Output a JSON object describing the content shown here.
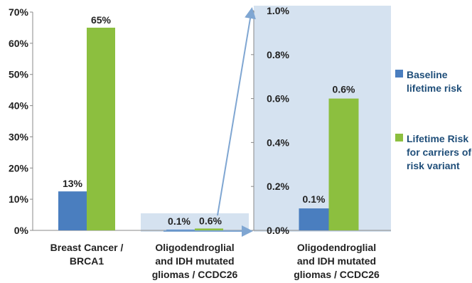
{
  "colors": {
    "baseline": "#4a7ebf",
    "carrier": "#8cbf3f",
    "zoom_bg": "#d5e2f0",
    "arrow": "#7fa6d2",
    "axis": "#888888"
  },
  "chart_data": [
    {
      "type": "bar",
      "ylim": [
        0,
        70
      ],
      "y_ticks": [
        "0%",
        "10%",
        "20%",
        "30%",
        "40%",
        "50%",
        "60%",
        "70%"
      ],
      "categories": [
        [
          "Breast Cancer /",
          "BRCA1"
        ],
        [
          "Oligodendroglial",
          "and IDH mutated",
          "gliomas / CCDC26"
        ]
      ],
      "series": [
        {
          "name": "Baseline lifetime risk",
          "values": [
            12.5,
            0.1
          ],
          "labels": [
            "13%",
            "0.1%"
          ]
        },
        {
          "name": "Lifetime Risk for carriers of risk variant",
          "values": [
            65,
            0.6
          ],
          "labels": [
            "65%",
            "0.6%"
          ]
        }
      ]
    },
    {
      "type": "bar",
      "ylim": [
        0,
        1.0
      ],
      "y_ticks": [
        "0.0%",
        "0.2%",
        "0.4%",
        "0.6%",
        "0.8%",
        "1.0%"
      ],
      "categories": [
        [
          "Oligodendroglial",
          "and IDH mutated",
          "gliomas / CCDC26"
        ]
      ],
      "series": [
        {
          "name": "Baseline lifetime risk",
          "values": [
            0.1
          ],
          "labels": [
            "0.1%"
          ]
        },
        {
          "name": "Lifetime Risk for carriers of risk variant",
          "values": [
            0.6
          ],
          "labels": [
            "0.6%"
          ]
        }
      ]
    }
  ],
  "legend": [
    {
      "lines": [
        "Baseline",
        "lifetime risk"
      ],
      "series": "baseline"
    },
    {
      "lines": [
        "Lifetime Risk",
        "for carriers of",
        "risk variant"
      ],
      "series": "carrier"
    }
  ]
}
